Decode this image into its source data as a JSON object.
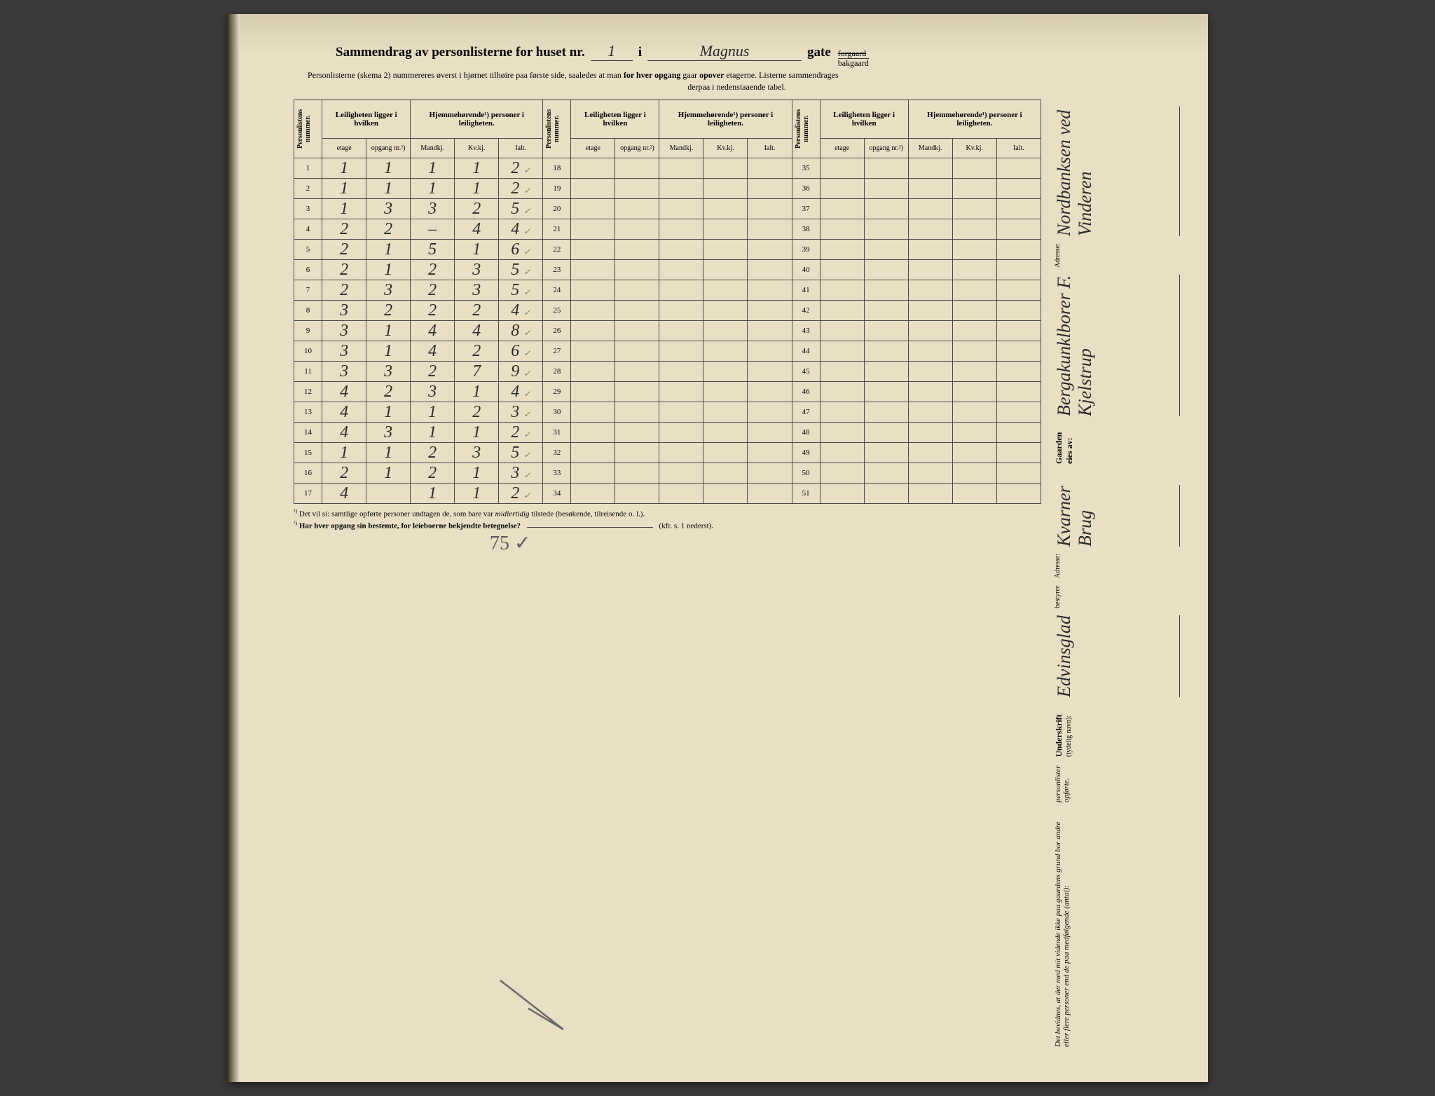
{
  "header": {
    "title_prefix": "Sammendrag av personlisterne for huset nr.",
    "house_nr": "1",
    "conj": "i",
    "street": "Magnus",
    "gate_label": "gate",
    "gate_top": "forgaard",
    "gate_bottom": "bakgaard",
    "subtitle1": "Personlisterne (skema 2) nummereres øverst i hjørnet tilhøire paa første side, saaledes at man",
    "subtitle1_bold": "for hver opgang",
    "subtitle1_rest": "gaar",
    "subtitle1_bold2": "opover",
    "subtitle1_end": "etagerne.  Listerne sammendrages",
    "subtitle2": "derpaa i nedenstaaende tabel."
  },
  "columns": {
    "personlist": "Personlistens nummer.",
    "leilighet": "Leiligheten ligger i hvilken",
    "hjemme": "Hjemmehørende¹) personer i leiligheten.",
    "etage": "etage",
    "opgang": "opgang nr.²)",
    "mandkj": "Mandkj.",
    "kvkj": "Kv.kj.",
    "ialt": "Ialt."
  },
  "data_rows": [
    {
      "n": 1,
      "etage": "1",
      "opgang": "1",
      "m": "1",
      "k": "1",
      "i": "2",
      "chk": "✓"
    },
    {
      "n": 2,
      "etage": "1",
      "opgang": "1",
      "m": "1",
      "k": "1",
      "i": "2",
      "chk": "✓"
    },
    {
      "n": 3,
      "etage": "1",
      "opgang": "3",
      "m": "3",
      "k": "2",
      "i": "5",
      "chk": "✓"
    },
    {
      "n": 4,
      "etage": "2",
      "opgang": "2",
      "m": "–",
      "k": "4",
      "i": "4",
      "chk": "✓"
    },
    {
      "n": 5,
      "etage": "2",
      "opgang": "1",
      "m": "5",
      "k": "1",
      "i": "6",
      "chk": "✓"
    },
    {
      "n": 6,
      "etage": "2",
      "opgang": "1",
      "m": "2",
      "k": "3",
      "i": "5",
      "chk": "✓"
    },
    {
      "n": 7,
      "etage": "2",
      "opgang": "3",
      "m": "2",
      "k": "3",
      "i": "5",
      "chk": "✓"
    },
    {
      "n": 8,
      "etage": "3",
      "opgang": "2",
      "m": "2",
      "k": "2",
      "i": "4",
      "chk": "✓"
    },
    {
      "n": 9,
      "etage": "3",
      "opgang": "1",
      "m": "4",
      "k": "4",
      "i": "8",
      "chk": "✓"
    },
    {
      "n": 10,
      "etage": "3",
      "opgang": "1",
      "m": "4",
      "k": "2",
      "i": "6",
      "chk": "✓"
    },
    {
      "n": 11,
      "etage": "3",
      "opgang": "3",
      "m": "2",
      "k": "7",
      "i": "9",
      "chk": "✓"
    },
    {
      "n": 12,
      "etage": "4",
      "opgang": "2",
      "m": "3",
      "k": "1",
      "i": "4",
      "chk": "✓"
    },
    {
      "n": 13,
      "etage": "4",
      "opgang": "1",
      "m": "1",
      "k": "2",
      "i": "3",
      "chk": "✓"
    },
    {
      "n": 14,
      "etage": "4",
      "opgang": "3",
      "m": "1",
      "k": "1",
      "i": "2",
      "chk": "✓"
    },
    {
      "n": 15,
      "etage": "1",
      "opgang": "1",
      "m": "2",
      "k": "3",
      "i": "5",
      "chk": "✓"
    },
    {
      "n": 16,
      "etage": "2",
      "opgang": "1",
      "m": "2",
      "k": "1",
      "i": "3",
      "chk": "✓"
    },
    {
      "n": 17,
      "etage": "4",
      "opgang": "",
      "m": "1",
      "k": "1",
      "i": "2",
      "chk": "✓"
    }
  ],
  "empty_cols": [
    [
      18,
      19,
      20,
      21,
      22,
      23,
      24,
      25,
      26,
      27,
      28,
      29,
      30,
      31,
      32,
      33,
      34
    ],
    [
      35,
      36,
      37,
      38,
      39,
      40,
      41,
      42,
      43,
      44,
      45,
      46,
      47,
      48,
      49,
      50,
      51
    ]
  ],
  "footnotes": {
    "fn1_sup": "¹)",
    "fn1": "Det vil si: samtlige opførte personer undtagen de, som bare var",
    "fn1_italic": "midlertidig",
    "fn1_rest": "tilstede (besøkende, tilreisende o. l.).",
    "fn2_sup": "²)",
    "fn2_bold": "Har hver opgang sin bestemte, for leieboerne bekjendte betegnelse?",
    "fn2_rest": "(kfr. s. 1 nederst).",
    "hand_total": "75 ✓"
  },
  "side": {
    "bevidnes": "Det bevidnes, at der med mit vidende ikke paa gaardens grund bor andre eller flere personer end de paa medfølgende (antal):",
    "personlister": "personlister opførte.",
    "underskrift_label": "Underskrift",
    "underskrift_hint": "(tydelig navn):",
    "signature1": "Edvinsglad",
    "bestyrer": "bestyrer",
    "adresse_label": "Adresse:",
    "adresse_val": "Kvarner Brug",
    "gaarden_label": "Gaarden eies av:",
    "owner": "Bergakunklborer F. Kjelstrup",
    "owner_addr_label": "Adresse:",
    "owner_addr": "Nordbanksen ved Vinderen"
  },
  "styling": {
    "paper_bg": "#e8dfc5",
    "ink": "#2a2a2a",
    "border": "#4a4a4a",
    "pencil": "#5a5a5a"
  }
}
